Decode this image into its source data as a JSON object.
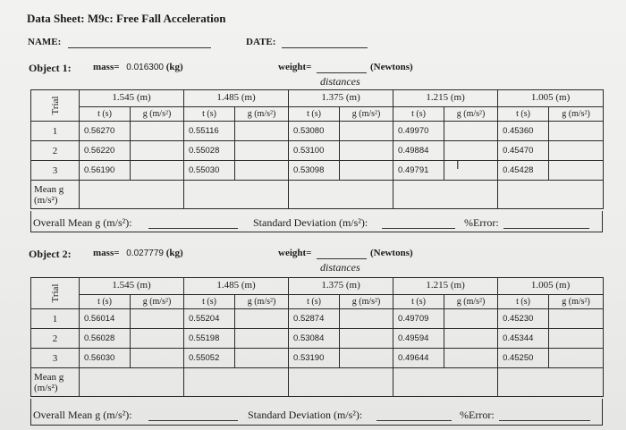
{
  "title": "Data Sheet: M9c: Free Fall Acceleration",
  "name_label": "NAME:",
  "date_label": "DATE:",
  "distances_label": "distances",
  "trial_label": "Trial",
  "t_label": "t (s)",
  "g_label": "g (m/s²)",
  "mean_label_1": "Mean g",
  "mean_label_2": "(m/s²)",
  "overall_label": "Overall Mean g (m/s²):",
  "stddev_label": "Standard Deviation (m/s²):",
  "error_label": "%Error:",
  "distance_headers": [
    "1.545 (m)",
    "1.485 (m)",
    "1.375 (m)",
    "1.215 (m)",
    "1.005 (m)"
  ],
  "trial_numbers": [
    "1",
    "2",
    "3"
  ],
  "objects": [
    {
      "label": "Object 1:",
      "mass_prefix": "mass=",
      "mass_value": "0.016300",
      "mass_unit": "(kg)",
      "weight_label": "weight=",
      "weight_unit": "(Newtons)",
      "rows": [
        [
          "0.56270",
          "0.55116",
          "0.53080",
          "0.49970",
          "0.45360"
        ],
        [
          "0.56220",
          "0.55028",
          "0.53100",
          "0.49884",
          "0.45470"
        ],
        [
          "0.56190",
          "0.55030",
          "0.53098",
          "0.49791",
          "0.45428"
        ]
      ]
    },
    {
      "label": "Object 2:",
      "mass_prefix": "mass=",
      "mass_value": "0.027779",
      "mass_unit": "(kg)",
      "weight_label": "weight=",
      "weight_unit": "(Newtons)",
      "rows": [
        [
          "0.56014",
          "0.55204",
          "0.52874",
          "0.49709",
          "0.45230"
        ],
        [
          "0.56028",
          "0.55198",
          "0.53084",
          "0.49594",
          "0.45344"
        ],
        [
          "0.56030",
          "0.55052",
          "0.53190",
          "0.49644",
          "0.45250"
        ]
      ]
    }
  ]
}
